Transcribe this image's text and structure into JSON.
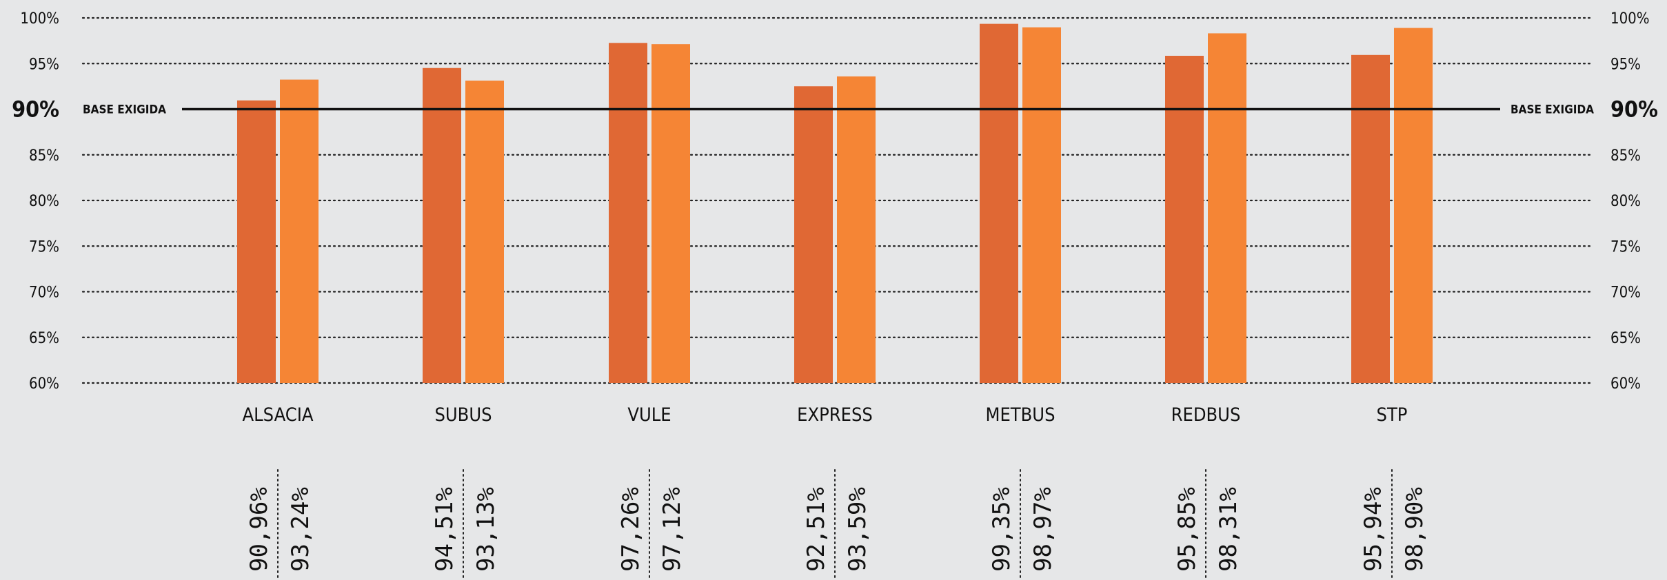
{
  "chart_data": {
    "type": "bar",
    "categories": [
      "ALSACIA",
      "SUBUS",
      "VULE",
      "EXPRESS",
      "METBUS",
      "REDBUS",
      "STP"
    ],
    "series": [
      {
        "values": [
          90.96,
          94.51,
          97.26,
          92.51,
          99.35,
          95.85,
          95.94
        ],
        "color": "#e06834"
      },
      {
        "values": [
          93.24,
          93.13,
          97.12,
          93.59,
          98.97,
          98.31,
          98.9
        ],
        "color": "#f58535"
      }
    ],
    "value_labels": [
      [
        "90,96%",
        "93,24%"
      ],
      [
        "94,51%",
        "93,13%"
      ],
      [
        "97,26%",
        "97,12%"
      ],
      [
        "92,51%",
        "93,59%"
      ],
      [
        "99,35%",
        "98,97%"
      ],
      [
        "95,85%",
        "98,31%"
      ],
      [
        "95,94%",
        "98,90%"
      ]
    ],
    "ylim": [
      60,
      100
    ],
    "y_ticks": [
      {
        "value": 60,
        "label": "60%"
      },
      {
        "value": 65,
        "label": "65%"
      },
      {
        "value": 70,
        "label": "70%"
      },
      {
        "value": 75,
        "label": "75%"
      },
      {
        "value": 80,
        "label": "80%"
      },
      {
        "value": 85,
        "label": "85%"
      },
      {
        "value": 95,
        "label": "95%"
      },
      {
        "value": 100,
        "label": "100%"
      }
    ],
    "baseline": {
      "value": 90,
      "value_label": "90%",
      "label": "BASE EXIGIDA"
    },
    "grid": "dotted",
    "axes": "both-sides",
    "title": "",
    "xlabel": "",
    "ylabel": ""
  }
}
